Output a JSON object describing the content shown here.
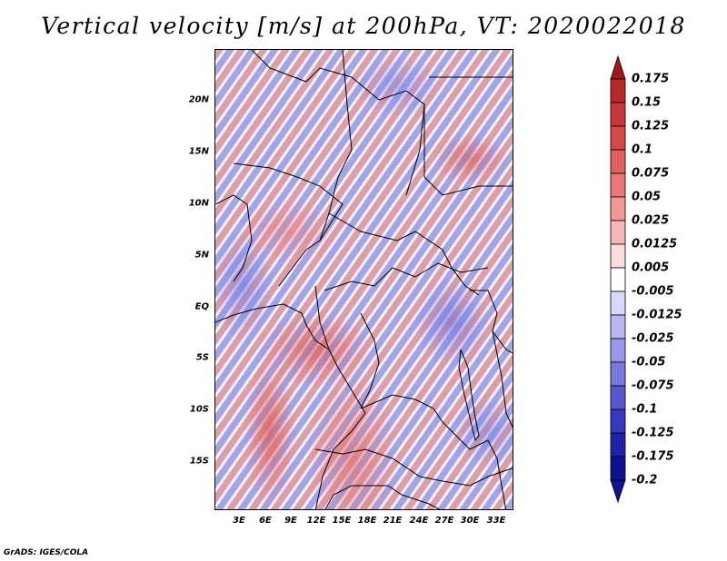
{
  "title": "Vertical velocity [m/s] at 200hPa, VT: 2020022018",
  "map": {
    "latitude_labels": [
      "20N",
      "15N",
      "10N",
      "5N",
      "EQ",
      "5S",
      "10S",
      "15S"
    ],
    "longitude_labels": [
      "3E",
      "6E",
      "9E",
      "12E",
      "15E",
      "18E",
      "21E",
      "24E",
      "27E",
      "30E",
      "33E"
    ]
  },
  "colorbar": {
    "labels": [
      "0.175",
      "0.15",
      "0.125",
      "0.1",
      "0.075",
      "0.05",
      "0.025",
      "0.0125",
      "0.005",
      "-0.005",
      "-0.0125",
      "-0.025",
      "-0.05",
      "-0.075",
      "-0.1",
      "-0.125",
      "-0.175",
      "-0.2"
    ],
    "colors": [
      "#a01818",
      "#b82828",
      "#c83838",
      "#d64848",
      "#e06060",
      "#e87878",
      "#f09898",
      "#f6b8b8",
      "#fadcdc",
      "#ffffff",
      "#d8d8f8",
      "#b8b8f0",
      "#9898e8",
      "#7878e0",
      "#5858d0",
      "#3838c0",
      "#2020a8",
      "#101090"
    ]
  },
  "credit": "GrADS: IGES/COLA"
}
